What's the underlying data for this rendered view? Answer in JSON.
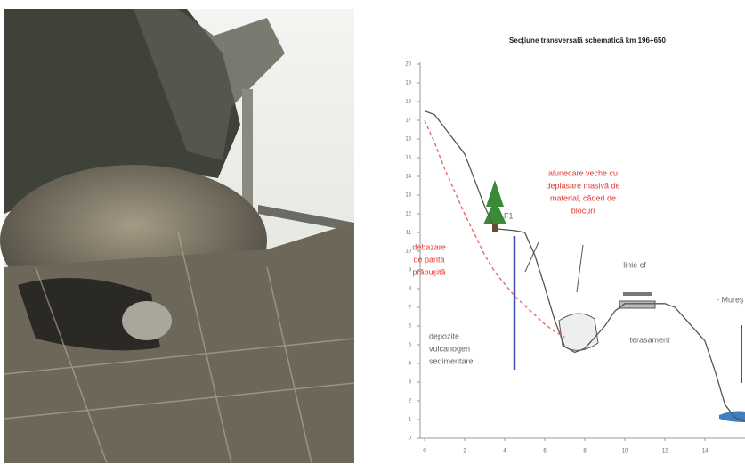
{
  "chart_data": {
    "type": "line",
    "title": "Secțiune transversală schematică km 196+650",
    "x": [
      0,
      0.5,
      1,
      2,
      2.5,
      3,
      3.5,
      4.5,
      5,
      5.5,
      6,
      6.5,
      7,
      7.5,
      8,
      8.5,
      9,
      9.5,
      10,
      11,
      12,
      12.5,
      13,
      13.5,
      14,
      14.5,
      15,
      15.5,
      16
    ],
    "series": [
      {
        "color": "#555555",
        "values": [
          17.5,
          17.3,
          16.6,
          15.2,
          13.8,
          12.4,
          11.2,
          11.1,
          11.0,
          9.8,
          8.1,
          6.3,
          4.9,
          4.6,
          4.8,
          5.4,
          6.0,
          6.8,
          7.2,
          7.2,
          7.2,
          7.0,
          6.4,
          5.8,
          5.2,
          3.6,
          1.8,
          1.1,
          0.9
        ]
      },
      {
        "color": "#e57373",
        "dash": true,
        "values": [
          17.0,
          15.8,
          14.4,
          12.0,
          10.9,
          9.8,
          8.9,
          7.6,
          7.1,
          6.6,
          6.1,
          5.7,
          5.4,
          null,
          null,
          null,
          null,
          null,
          null,
          null,
          null,
          null,
          null,
          null,
          null,
          null,
          null,
          null,
          null
        ]
      }
    ],
    "xlim": [
      0,
      16
    ],
    "ylim": [
      0,
      20
    ],
    "xticks": [
      0,
      2,
      4,
      6,
      8,
      10,
      12,
      14
    ],
    "yticks": [
      0,
      1,
      2,
      3,
      4,
      5,
      6,
      7,
      8,
      9,
      10,
      11,
      12,
      13,
      14,
      15,
      16,
      17,
      18,
      19,
      20
    ],
    "annotations": [
      {
        "lines": [
          "alunecare veche cu",
          "deplasare masivă de",
          "material, căderi de",
          "blocuri"
        ],
        "color": "#e53935"
      },
      {
        "lines": [
          "debazare",
          "de pantă",
          "prăbușită"
        ],
        "color": "#e53935"
      },
      {
        "lines": [
          "F1"
        ],
        "color": "#666666"
      },
      {
        "lines": [
          "linie cf"
        ],
        "color": "#666666"
      },
      {
        "lines": [
          "terasament"
        ],
        "color": "#666666"
      },
      {
        "lines": [
          "depozite",
          "vulcanogen",
          "sedimentare"
        ],
        "color": "#666666"
      },
      {
        "lines": [
          "- Mureș"
        ],
        "color": "#666666"
      }
    ]
  }
}
